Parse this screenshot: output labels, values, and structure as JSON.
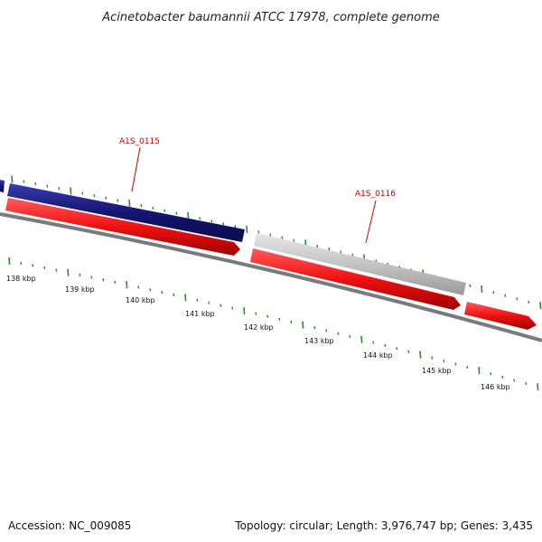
{
  "title": "Acinetobacter baumannii ATCC 17978, complete genome",
  "footer": {
    "accession": "Accession: NC_009085",
    "summary": "Topology: circular; Length: 3,976,747 bp; Genes: 3,435"
  },
  "scale_labels": [
    "138 kbp",
    "139 kbp",
    "140 kbp",
    "141 kbp",
    "142 kbp",
    "143 kbp",
    "144 kbp",
    "145 kbp",
    "146 kbp"
  ],
  "gene_labels": [
    "A1S_0115",
    "A1S_0116"
  ],
  "colors": {
    "label_red": "#cc0000",
    "forward_gene": "#1a1a7a",
    "grey_gene": "#bdbdbd",
    "cds_red": "#ee1111",
    "backbone": "#777777",
    "tick_green": "#2e8b2e"
  }
}
